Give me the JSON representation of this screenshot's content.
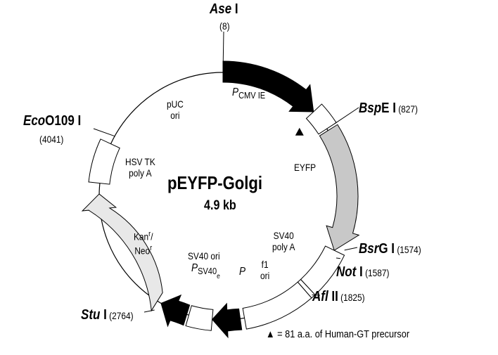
{
  "plasmid": {
    "name": "pEYFP-Golgi",
    "size": "4.9 kb"
  },
  "colors": {
    "promoter": "#000000",
    "eyfp": "#c8c8c8",
    "kan_neo": "#e8e8e8",
    "box": "#ffffff"
  },
  "features": {
    "cmv": {
      "p": "P",
      "sub": "CMV  IE"
    },
    "puc": [
      "pUC",
      "ori"
    ],
    "hsv": [
      "HSV TK",
      "poly A"
    ],
    "eyfp": "EYFP",
    "kan": {
      "a": "Kan",
      "a_sup": "r",
      "slash": "/",
      "b": "Neo",
      "b_sup": "r"
    },
    "sv40pa": [
      "SV40",
      "poly A"
    ],
    "f1": [
      "f1",
      "ori"
    ],
    "sv40ori": "SV40 ori",
    "psv40": {
      "p": "P",
      "sub": "SV40",
      "subsub": "e"
    },
    "p": "P"
  },
  "sites": [
    {
      "enzyme_italic": "Ase",
      "enzyme_roman": " I",
      "position": "(8)"
    },
    {
      "enzyme_italic": "Bsp",
      "enzyme_roman": "E I",
      "position": " (827)"
    },
    {
      "enzyme_italic": "Bsr",
      "enzyme_roman": "G I",
      "position": " (1574)"
    },
    {
      "enzyme_italic": "Not",
      "enzyme_roman": " I",
      "position": " (1587)"
    },
    {
      "enzyme_italic": "Afl",
      "enzyme_roman": " II",
      "position": " (1825)"
    },
    {
      "enzyme_italic": "Stu",
      "enzyme_roman": " I",
      "position": " (2764)"
    },
    {
      "enzyme_italic": "Eco",
      "enzyme_roman": "O109 I",
      "position": "(4041)"
    }
  ],
  "legend": {
    "icon": "triangle-up",
    "text": "= 81 a.a. of Human-GT precursor"
  }
}
